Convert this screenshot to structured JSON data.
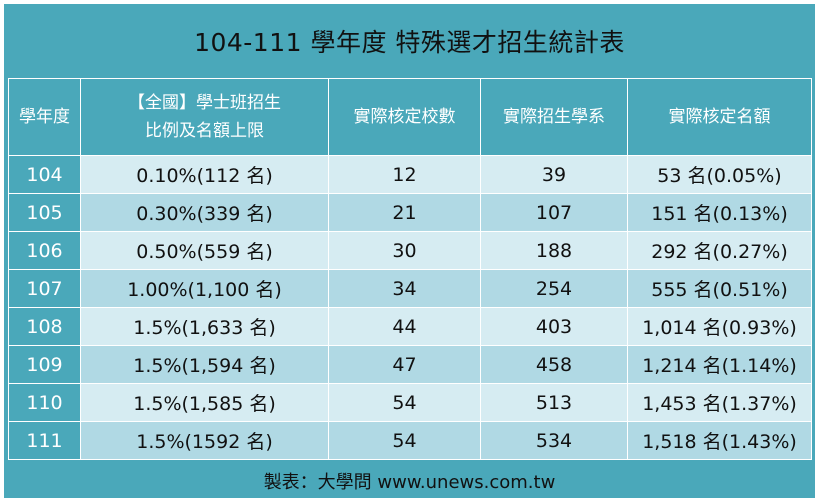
{
  "title": "104-111 學年度  特殊選才招生統計表",
  "headers": [
    "學年度",
    "【全國】學士班招生",
    "比例及名額上限",
    "實際核定校數",
    "實際招生學系",
    "實際核定名額"
  ],
  "rows": [
    {
      "year": "104",
      "ratio": "0.10%(112 名)",
      "schools": "12",
      "depts": "39",
      "quota": "53 名(0.05%)"
    },
    {
      "year": "105",
      "ratio": "0.30%(339 名)",
      "schools": "21",
      "depts": "107",
      "quota": "151 名(0.13%)"
    },
    {
      "year": "106",
      "ratio": "0.50%(559 名)",
      "schools": "30",
      "depts": "188",
      "quota": "292 名(0.27%)"
    },
    {
      "year": "107",
      "ratio": "1.00%(1,100 名)",
      "schools": "34",
      "depts": "254",
      "quota": "555 名(0.51%)"
    },
    {
      "year": "108",
      "ratio": "1.5%(1,633 名)",
      "schools": "44",
      "depts": "403",
      "quota": "1,014 名(0.93%)"
    },
    {
      "year": "109",
      "ratio": "1.5%(1,594 名)",
      "schools": "47",
      "depts": "458",
      "quota": "1,214 名(1.14%)"
    },
    {
      "year": "110",
      "ratio": "1.5%(1,585 名)",
      "schools": "54",
      "depts": "513",
      "quota": "1,453 名(1.37%)"
    },
    {
      "year": "111",
      "ratio": "1.5%(1592 名)",
      "schools": "54",
      "depts": "534",
      "quota": "1,518 名(1.43%)"
    }
  ],
  "footer": "製表：大學問 www.unews.com.tw",
  "colors": {
    "header_bg": "#4aa8ba",
    "row_light": "#d6ecf2",
    "row_dark": "#b0d9e4"
  }
}
